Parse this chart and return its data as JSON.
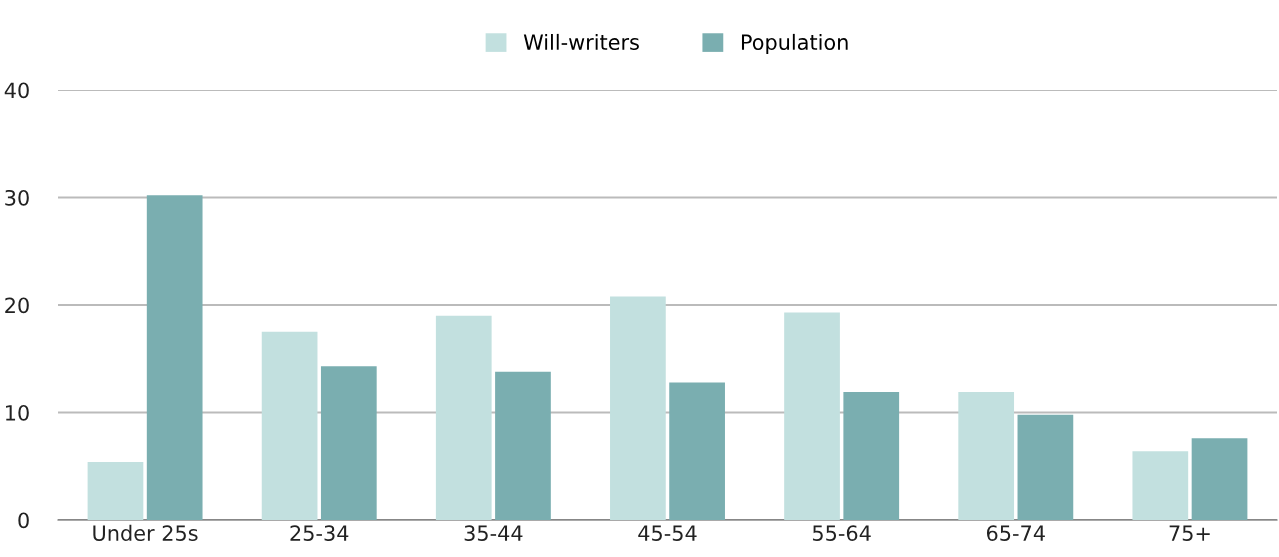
{
  "chart_data": {
    "type": "bar",
    "categories": [
      "Under 25s",
      "25-34",
      "35-44",
      "45-54",
      "55-64",
      "65-74",
      "75+"
    ],
    "series": [
      {
        "name": "Will-writers",
        "color": "#c2e0df",
        "values": [
          5.4,
          17.5,
          19.0,
          20.8,
          19.3,
          11.9,
          6.4
        ]
      },
      {
        "name": "Population",
        "color": "#7aaeb0",
        "values": [
          30.2,
          14.3,
          13.8,
          12.8,
          11.9,
          9.8,
          7.6
        ]
      }
    ],
    "ylim": [
      0,
      40
    ],
    "yticks": [
      0,
      10,
      20,
      30,
      40
    ],
    "grid": "y",
    "legend": "top"
  }
}
